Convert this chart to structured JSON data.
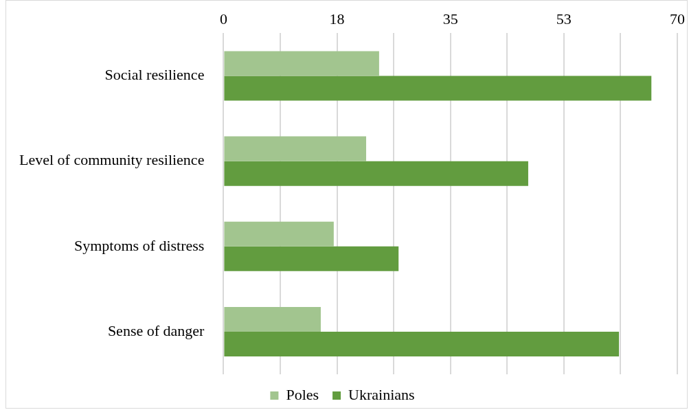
{
  "chart_data": {
    "type": "bar",
    "orientation": "horizontal",
    "categories": [
      "Social resilience",
      "Level of community resilience",
      "Symptoms of distress",
      "Sense of danger"
    ],
    "series": [
      {
        "name": "Poles",
        "color": "#a2c58f",
        "values": [
          24,
          22,
          17,
          15
        ]
      },
      {
        "name": "Ukrainians",
        "color": "#629c3f",
        "values": [
          66,
          47,
          27,
          61
        ]
      }
    ],
    "xlim": [
      0,
      70
    ],
    "xticks": [
      0,
      {
        "value": 8.75,
        "label": null
      },
      {
        "value": 17.5,
        "label": "18"
      },
      {
        "value": 26.25,
        "label": null
      },
      35,
      {
        "value": 43.75,
        "label": null
      },
      {
        "value": 52.5,
        "label": "53"
      },
      {
        "value": 61.25,
        "label": null
      },
      70
    ],
    "grid": "x",
    "legend": "bottom"
  }
}
